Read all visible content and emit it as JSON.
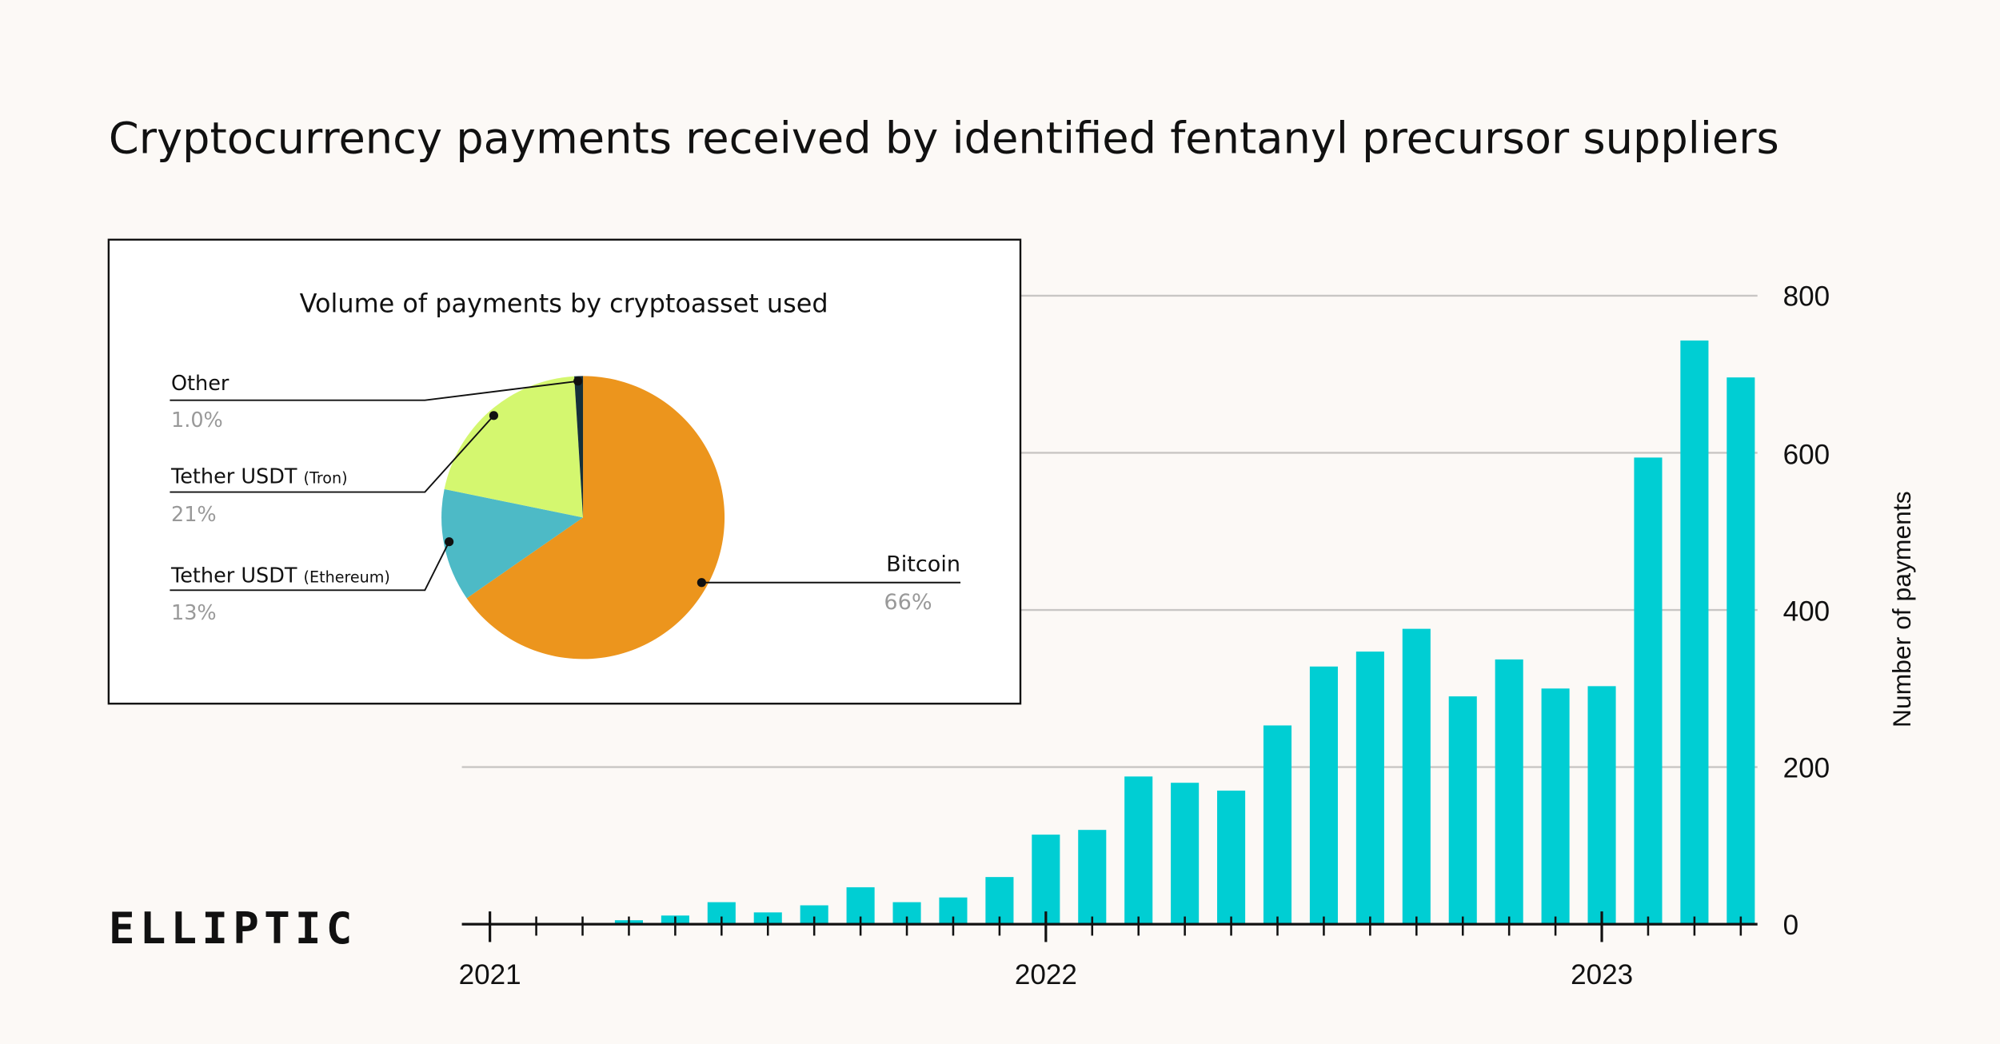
{
  "title": "Cryptocurrency payments received by identified fentanyl precursor suppliers",
  "logo": "ELLIPTIC",
  "colors": {
    "bar": "#00ced3",
    "background": "#fcf9f6",
    "grid": "#c8c6c4"
  },
  "chart_data": [
    {
      "type": "bar",
      "title": "",
      "xlabel": "",
      "ylabel": "Number of payments",
      "ylim": [
        0,
        800
      ],
      "y_ticks": [
        "0",
        "200",
        "400",
        "600",
        "800"
      ],
      "y_axis_position": "right",
      "grid": true,
      "x_tick_labels": [
        "2021",
        "2022",
        "2023"
      ],
      "categories": [
        "2021-01",
        "2021-02",
        "2021-03",
        "2021-04",
        "2021-05",
        "2021-06",
        "2021-07",
        "2021-08",
        "2021-09",
        "2021-10",
        "2021-11",
        "2021-12",
        "2022-01",
        "2022-02",
        "2022-03",
        "2022-04",
        "2022-05",
        "2022-06",
        "2022-07",
        "2022-08",
        "2022-09",
        "2022-10",
        "2022-11",
        "2022-12",
        "2023-01",
        "2023-02",
        "2023-03",
        "2023-04"
      ],
      "values": [
        0,
        0,
        0,
        5,
        11,
        28,
        15,
        24,
        47,
        28,
        34,
        60,
        114,
        120,
        188,
        180,
        170,
        253,
        328,
        347,
        376,
        290,
        337,
        300,
        303,
        594,
        743,
        696
      ]
    },
    {
      "type": "pie",
      "title": "Volume of payments by cryptoasset used",
      "slices": [
        {
          "label": "Bitcoin",
          "sub": "",
          "pct_label": "66%",
          "value": 66,
          "color": "#ec951d"
        },
        {
          "label": "Tether USDT",
          "sub": "(Ethereum)",
          "pct_label": "13%",
          "value": 13,
          "color": "#4dbac6"
        },
        {
          "label": "Tether USDT",
          "sub": "(Tron)",
          "pct_label": "21%",
          "value": 21,
          "color": "#d4f76f"
        },
        {
          "label": "Other",
          "sub": "",
          "pct_label": "1.0%",
          "value": 1,
          "color": "#15303a"
        }
      ]
    }
  ]
}
